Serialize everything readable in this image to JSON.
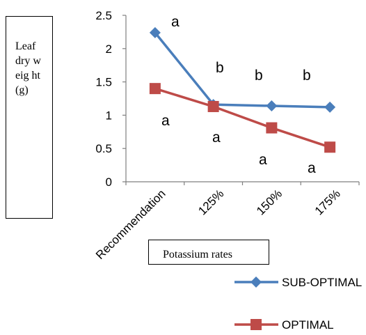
{
  "chart_data": {
    "type": "line",
    "categories": [
      "Recommendation",
      "125%",
      "150%",
      "175%"
    ],
    "series": [
      {
        "name": "SUB-OPTIMAL",
        "values": [
          2.24,
          1.16,
          1.14,
          1.12
        ],
        "color": "#4a7ebb",
        "marker": "diamond"
      },
      {
        "name": "OPTIMAL",
        "values": [
          1.4,
          1.13,
          0.81,
          0.52
        ],
        "color": "#be4b48",
        "marker": "square"
      }
    ],
    "ylim": [
      0,
      2.5
    ],
    "yticks": [
      "0",
      "0.5",
      "1",
      "1.5",
      "2",
      "2.5"
    ],
    "ylabel": "Leaf dry weight(g)",
    "ylabel_display": "Leaf dry weig ht(g)",
    "xlabel": "Potassium rates",
    "grid": false,
    "legend_position": "bottom-right",
    "annotations": {
      "sub_optimal": [
        "a",
        "b",
        "b",
        "b"
      ],
      "optimal": [
        "a",
        "a",
        "a",
        "a"
      ]
    }
  }
}
